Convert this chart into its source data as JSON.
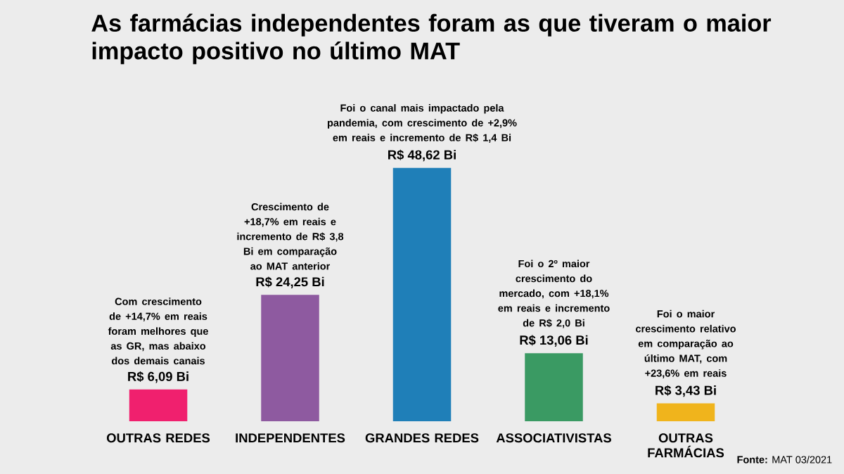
{
  "chart_data": {
    "type": "bar",
    "title": "As farmácias independentes foram as que tiveram o maior impacto positivo no último MAT",
    "categories": [
      "OUTRAS REDES",
      "INDEPENDENTES",
      "GRANDES REDES",
      "ASSOCIATIVISTAS",
      "OUTRAS FARMÁCIAS"
    ],
    "values": [
      6.09,
      24.25,
      48.62,
      13.06,
      3.43
    ],
    "value_labels": [
      "R$ 6,09 Bi",
      "R$ 24,25 Bi",
      "R$ 48,62 Bi",
      "R$ 13,06 Bi",
      "R$ 3,43 Bi"
    ],
    "colors": [
      "#f0206e",
      "#8e5aa0",
      "#1f7fb8",
      "#3a9a63",
      "#f0b41c"
    ],
    "annotations": [
      "Com **crescimento de +14,7% em reais** foram melhores que as GR, mas abaixo dos demais canais",
      "**Crescimento de +18,7%** em reais e **incremento de R$ 3,8 Bi** em comparação ao MAT anterior",
      "Foi o canal mais impactado pela pandemia, com **crescimento de +2,9% em reais** e **incremento de R$ 1,4 Bi**",
      "Foi o 2º maior crescimento do mercado, **com +18,1% em reais** e **incremento de R$ 2,0 Bi**",
      "Foi o maior crescimento relativo em comparação ao último MAT, com **+23,6% em reais**",
      "**Fonte:** MAT 03/2021"
    ]
  }
}
